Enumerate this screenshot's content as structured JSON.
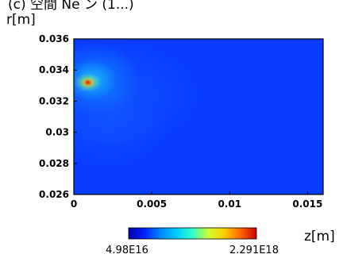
{
  "caption": "(c)  空間 Ne  ン (1...)",
  "chart_data": {
    "type": "heatmap",
    "title": "",
    "xlabel": "z[m]",
    "ylabel": "r[m]",
    "xlim": [
      0,
      0.016
    ],
    "ylim": [
      0.026,
      0.036
    ],
    "x_ticks": [
      "0",
      "0.005",
      "0.01",
      "0.015"
    ],
    "y_ticks": [
      "0.026",
      "0.028",
      "0.03",
      "0.032",
      "0.034",
      "0.036"
    ],
    "colorbar": {
      "min_label": "4.98E16",
      "max_label": "2.291E18",
      "min": 4.98e+16,
      "max": 2.291e+18
    },
    "colormap": [
      "#0000aa",
      "#0022ff",
      "#0088ff",
      "#00ccff",
      "#33ffcc",
      "#ccff33",
      "#ffcc00",
      "#ff6600",
      "#cc0000"
    ],
    "field_description_values": {
      "background_level": 0.12,
      "hotspot": {
        "z": 0.0009,
        "r": 0.0332,
        "level": 1.0
      },
      "near_plume_extent_z": 0.003,
      "far_plume_extent_z": 0.008
    },
    "grid": false
  }
}
